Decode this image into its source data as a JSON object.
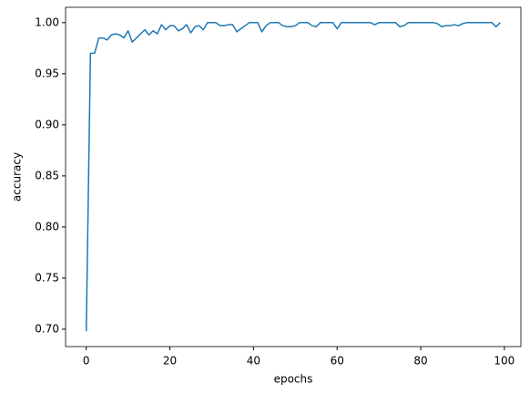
{
  "chart_data": {
    "type": "line",
    "x_label": "epochs",
    "y_label": "accuracy",
    "x": [
      0,
      1,
      2,
      3,
      4,
      5,
      6,
      7,
      8,
      9,
      10,
      11,
      12,
      13,
      14,
      15,
      16,
      17,
      18,
      19,
      20,
      21,
      22,
      23,
      24,
      25,
      26,
      27,
      28,
      29,
      30,
      31,
      32,
      33,
      34,
      35,
      36,
      37,
      38,
      39,
      40,
      41,
      42,
      43,
      44,
      45,
      46,
      47,
      48,
      49,
      50,
      51,
      52,
      53,
      54,
      55,
      56,
      57,
      58,
      59,
      60,
      61,
      62,
      63,
      64,
      65,
      66,
      67,
      68,
      69,
      70,
      71,
      72,
      73,
      74,
      75,
      76,
      77,
      78,
      79,
      80,
      81,
      82,
      83,
      84,
      85,
      86,
      87,
      88,
      89,
      90,
      91,
      92,
      93,
      94,
      95,
      96,
      97,
      98,
      99
    ],
    "series": [
      {
        "color": "#1f77b4",
        "values": [
          0.698,
          0.97,
          0.97,
          0.985,
          0.985,
          0.983,
          0.988,
          0.989,
          0.988,
          0.985,
          0.992,
          0.981,
          0.985,
          0.989,
          0.993,
          0.988,
          0.992,
          0.989,
          0.998,
          0.993,
          0.997,
          0.997,
          0.992,
          0.994,
          0.998,
          0.99,
          0.996,
          0.997,
          0.993,
          1.0,
          1.0,
          1.0,
          0.997,
          0.997,
          0.998,
          0.998,
          0.991,
          0.994,
          0.997,
          1.0,
          1.0,
          1.0,
          0.991,
          0.997,
          1.0,
          1.0,
          1.0,
          0.997,
          0.996,
          0.996,
          0.997,
          1.0,
          1.0,
          1.0,
          0.997,
          0.996,
          1.0,
          1.0,
          1.0,
          1.0,
          0.994,
          1.0,
          1.0,
          1.0,
          1.0,
          1.0,
          1.0,
          1.0,
          1.0,
          0.998,
          1.0,
          1.0,
          1.0,
          1.0,
          1.0,
          0.996,
          0.997,
          1.0,
          1.0,
          1.0,
          1.0,
          1.0,
          1.0,
          1.0,
          0.999,
          0.996,
          0.997,
          0.997,
          0.998,
          0.997,
          0.999,
          1.0,
          1.0,
          1.0,
          1.0,
          1.0,
          1.0,
          1.0,
          0.996,
          1.0
        ]
      }
    ],
    "xlim": [
      -4.95,
      103.95
    ],
    "xticks": [
      0,
      20,
      40,
      60,
      80,
      100
    ],
    "ylim": [
      0.683,
      1.015
    ],
    "yticks": [
      {
        "value": 0.7,
        "label": "0.70"
      },
      {
        "value": 0.75,
        "label": "0.75"
      },
      {
        "value": 0.8,
        "label": "0.80"
      },
      {
        "value": 0.85,
        "label": "0.85"
      },
      {
        "value": 0.9,
        "label": "0.90"
      },
      {
        "value": 0.95,
        "label": "0.95"
      },
      {
        "value": 1.0,
        "label": "1.00"
      }
    ]
  }
}
